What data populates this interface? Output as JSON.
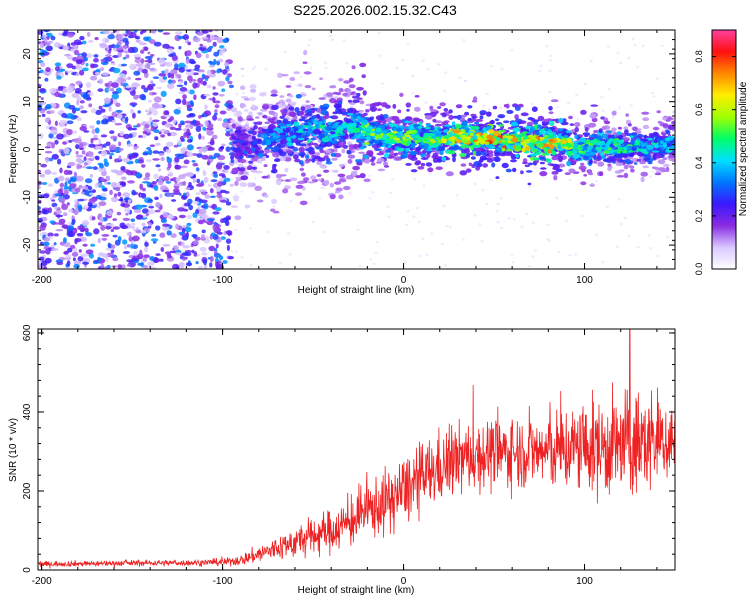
{
  "title": "S225.2026.002.15.32.C43",
  "colors": {
    "axis": "#000000",
    "snr_line": "#ee2222",
    "background": "#ffffff"
  },
  "colorbar": {
    "label": "Normalized spectral amplitude",
    "ticks": [
      "0.0",
      "0.2",
      "0.4",
      "0.6",
      "0.8"
    ],
    "tick_values": [
      0.0,
      0.2,
      0.4,
      0.6,
      0.8
    ],
    "range": [
      0.0,
      0.9
    ],
    "colormap": [
      "#ffffff",
      "#d9c8ff",
      "#8a2be2",
      "#3a18ff",
      "#0077ff",
      "#00e0ff",
      "#00ff66",
      "#a0ff00",
      "#ffee00",
      "#ff8800",
      "#ff1010",
      "#ff40a0"
    ]
  },
  "chart_data": [
    {
      "type": "heatmap",
      "title": "S225.2026.002.15.32.C43",
      "xlabel": "Height of straight line (km)",
      "ylabel": "Frequency (Hz)",
      "xlim": [
        -202,
        150
      ],
      "ylim": [
        -25,
        25
      ],
      "xticks": [
        -200,
        -100,
        0,
        100
      ],
      "xtick_labels": [
        "-200",
        "-100",
        "0",
        "100"
      ],
      "yticks": [
        -20,
        -10,
        0,
        10,
        20
      ],
      "ytick_labels": [
        "-20",
        "-10",
        "0",
        "10",
        "20"
      ],
      "noise_region_x": [
        -202,
        -95
      ],
      "signal_track": {
        "x": [
          -95,
          -80,
          -60,
          -40,
          -30,
          -20,
          0,
          20,
          40,
          60,
          80,
          100,
          120,
          150
        ],
        "freq": [
          0.5,
          1.5,
          3.5,
          4.0,
          5.0,
          3.5,
          2.5,
          2.5,
          2.5,
          2.0,
          1.5,
          0.5,
          0.5,
          1.0
        ],
        "peak_amplitude": [
          0.3,
          0.35,
          0.45,
          0.5,
          0.45,
          0.6,
          0.65,
          0.7,
          0.8,
          0.85,
          0.8,
          0.6,
          0.55,
          0.45
        ]
      }
    },
    {
      "type": "line",
      "xlabel": "Height of straight line (km)",
      "ylabel": "SNR (10 * v/v)",
      "xlim": [
        -202,
        150
      ],
      "ylim": [
        0,
        610
      ],
      "xticks": [
        -200,
        -100,
        0,
        100
      ],
      "xtick_labels": [
        "-200",
        "-100",
        "0",
        "100"
      ],
      "yticks": [
        0,
        200,
        400,
        600
      ],
      "ytick_labels": [
        "0",
        "200",
        "400",
        "600"
      ],
      "series": [
        {
          "name": "SNR",
          "x": [
            -202,
            -180,
            -160,
            -140,
            -120,
            -100,
            -90,
            -80,
            -70,
            -60,
            -50,
            -40,
            -30,
            -20,
            -10,
            0,
            10,
            20,
            30,
            40,
            50,
            60,
            70,
            80,
            90,
            100,
            110,
            120,
            130,
            140,
            150
          ],
          "values": [
            15,
            16,
            17,
            18,
            18,
            20,
            25,
            40,
            55,
            70,
            85,
            100,
            120,
            150,
            170,
            200,
            230,
            260,
            280,
            290,
            295,
            300,
            300,
            300,
            305,
            310,
            310,
            315,
            320,
            330,
            330
          ],
          "spread": [
            8,
            8,
            8,
            8,
            8,
            10,
            15,
            25,
            35,
            45,
            55,
            60,
            70,
            80,
            90,
            95,
            100,
            100,
            100,
            100,
            100,
            100,
            100,
            110,
            120,
            130,
            140,
            150,
            150,
            140,
            120
          ],
          "max_spike": {
            "x": 125,
            "y": 610
          }
        }
      ]
    }
  ]
}
